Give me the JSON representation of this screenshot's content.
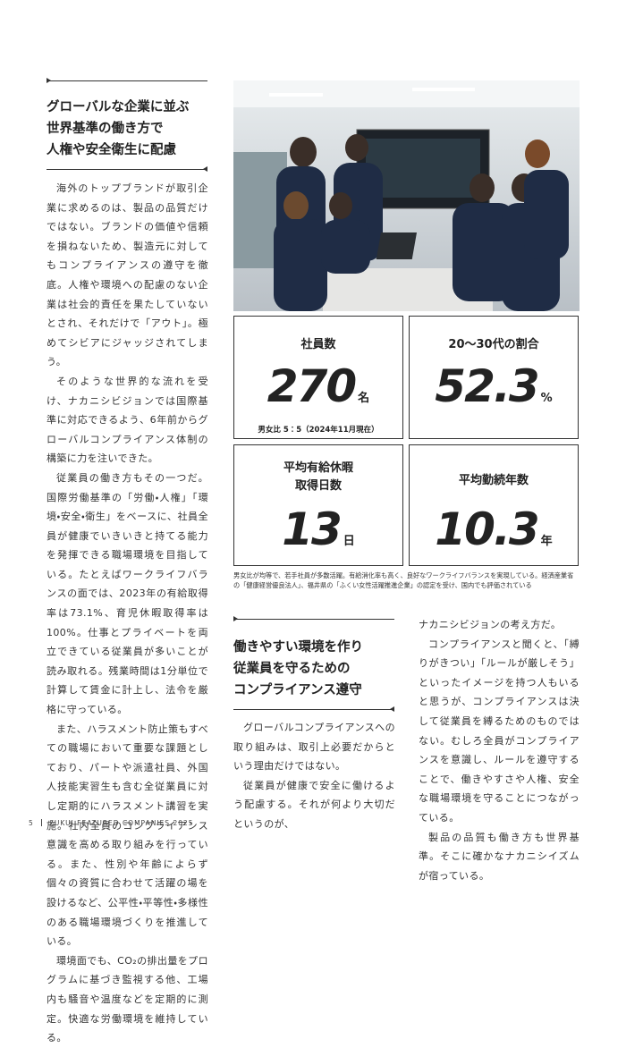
{
  "left": {
    "heading": [
      "グローバルな企業に並ぶ",
      "世界基準の働き方で",
      "人権や安全衛生に配慮"
    ],
    "paragraphs": [
      "海外のトップブランドが取引企業に求めるのは、製品の品質だけではない。ブランドの価値や信頼を損ねないため、製造元に対してもコンプライアンスの遵守を徹底。人権や環境への配慮のない企業は社会的責任を果たしていないとされ、それだけで「アウト」。極めてシビアにジャッジされてしまう。",
      "そのような世界的な流れを受け、ナカニシビジョンでは国際基準に対応できるよう、6年前からグローバルコンプライアンス体制の構築に力を注いできた。",
      "従業員の働き方もその一つだ。国際労働基準の「労働・人権」「環境・安全・衛生」をベースに、社員全員が健康でいきいきと持てる能力を発揮できる職場環境を目指している。たとえばワークライフバランスの面では、2023年の有給取得率は73.1%、育児休暇取得率は100%。仕事とプライベートを両立できている従業員が多いことが読み取れる。残業時間は1分単位で計算して賃金に計上し、法令を厳格に守っている。",
      "また、ハラスメント防止策もすべての職場において重要な課題としており、パートや派遣社員、外国人技能実習生も含む全従業員に対し定期的にハラスメント講習を実施。社内全員のコンプライアンス意識を高める取り組みを行っている。また、性別や年齢によらず個々の資質に合わせて活躍の場を設けるなど、公平性・平等性・多様性のある職場環境づくりを推進している。",
      "環境面でも、CO₂の排出量をプログラムに基づき監視する他、工場内も騒音や温度などを定期的に測定。快適な労働環境を維持している。"
    ]
  },
  "stats": [
    {
      "label": [
        "社員数"
      ],
      "value": "270",
      "unit": "名",
      "note": "男女比 5：5（2024年11月現在）"
    },
    {
      "label": [
        "20〜30代の割合"
      ],
      "value": "52.3",
      "unit": "%"
    },
    {
      "label": [
        "平均有給休暇",
        "取得日数"
      ],
      "value": "13",
      "unit": "日"
    },
    {
      "label": [
        "平均勤続年数"
      ],
      "value": "10.3",
      "unit": "年"
    }
  ],
  "caption": "男女比が均等で、若手社員が多数活躍。有給消化率も高く、良好なワークライフバランスを実現している。経済産業省の「健康経営優良法人」、福井県の「ふくい女性活躍推進企業」の認定を受け、国内でも評価されている",
  "section2": {
    "heading": [
      "働きやすい環境を作り",
      "従業員を守るための",
      "コンプライアンス遵守"
    ],
    "paragraphs": [
      "グローバルコンプライアンスへの取り組みは、取引上必要だからという理由だけではない。",
      "従業員が健康で安全に働けるよう配慮する。それが何より大切だというのが、"
    ]
  },
  "right": {
    "paragraphs": [
      "ナカニシビジョンの考え方だ。",
      "コンプライアンスと聞くと、「縛りがきつい」「ルールが厳しそう」といったイメージを持つ人もいると思うが、コンプライアンスは決して従業員を縛るためのものではない。むしろ全員がコンプライアンスを意識し、ルールを遵守することで、働きやすさや人権、安全な職場環境を守ることにつながっている。",
      "製品の品質も働き方も世界基準。そこに確かなナカニシイズムが宿っている。"
    ]
  },
  "footer": {
    "page": "5",
    "title": "FUKUI FEATURED COMPANIES 2025"
  }
}
